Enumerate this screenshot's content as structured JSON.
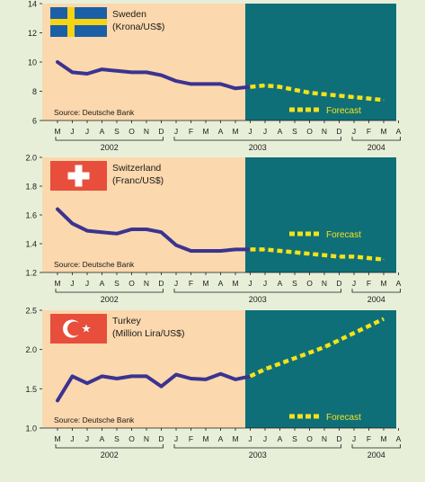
{
  "source_label": "Source: Deutsche Bank",
  "forecast_label": "Forecast",
  "month_labels": [
    "M",
    "J",
    "J",
    "A",
    "S",
    "O",
    "N",
    "D",
    "J",
    "F",
    "M",
    "A",
    "M",
    "J",
    "J",
    "A",
    "S",
    "O",
    "N",
    "D",
    "J",
    "F",
    "M",
    "A"
  ],
  "year_labels": [
    "2002",
    "2003",
    "2004"
  ],
  "colors": {
    "page_bg": "#e8efd9",
    "history_bg": "#fbd8ad",
    "forecast_bg": "#0f6f78",
    "history_line": "#3b3391",
    "forecast_line": "#f5e21a",
    "axis_text": "#1a1a1a"
  },
  "chart_data": [
    {
      "type": "line",
      "title": "Sweden",
      "subtitle": "(Krona/US$)",
      "flag": "sweden-flag-icon",
      "ylim": [
        6,
        14
      ],
      "yticks": [
        "14",
        "12",
        "10",
        "8",
        "6"
      ],
      "series": [
        {
          "values": [
            10.0,
            9.3,
            9.2,
            9.5,
            9.4,
            9.3,
            9.3,
            9.1,
            8.7,
            8.5,
            8.5,
            8.5,
            8.2,
            8.3
          ]
        },
        {
          "values": [
            8.3,
            8.4,
            8.3,
            8.1,
            7.9,
            7.8,
            7.7,
            7.6,
            7.5,
            7.4
          ]
        }
      ]
    },
    {
      "type": "line",
      "title": "Switzerland",
      "subtitle": "(Franc/US$)",
      "flag": "switzerland-flag-icon",
      "ylim": [
        1.2,
        2.0
      ],
      "yticks": [
        "2.0",
        "1.8",
        "1.6",
        "1.4",
        "1.2"
      ],
      "series": [
        {
          "values": [
            1.64,
            1.54,
            1.49,
            1.48,
            1.47,
            1.5,
            1.5,
            1.48,
            1.39,
            1.35,
            1.35,
            1.35,
            1.36,
            1.36
          ]
        },
        {
          "values": [
            1.36,
            1.36,
            1.35,
            1.34,
            1.33,
            1.32,
            1.31,
            1.31,
            1.3,
            1.29
          ]
        }
      ]
    },
    {
      "type": "line",
      "title": "Turkey",
      "subtitle": "(Million Lira/US$)",
      "flag": "turkey-flag-icon",
      "ylim": [
        1.0,
        2.5
      ],
      "yticks": [
        "2.5",
        "2.0",
        "1.5",
        "1.0"
      ],
      "series": [
        {
          "values": [
            1.35,
            1.66,
            1.57,
            1.66,
            1.63,
            1.66,
            1.66,
            1.53,
            1.68,
            1.63,
            1.62,
            1.69,
            1.62,
            1.66
          ]
        },
        {
          "values": [
            1.66,
            1.75,
            1.82,
            1.89,
            1.96,
            2.03,
            2.12,
            2.21,
            2.3,
            2.39
          ]
        }
      ]
    }
  ]
}
